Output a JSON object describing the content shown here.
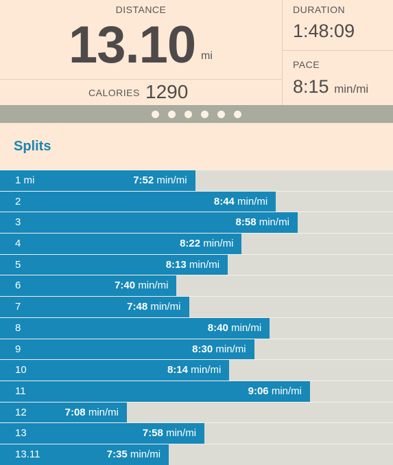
{
  "summary": {
    "distance_label": "DISTANCE",
    "distance_value": "13.10",
    "distance_unit": "mi",
    "calories_label": "CALORIES",
    "calories_value": "1290",
    "duration_label": "DURATION",
    "duration_value": "1:48:09",
    "pace_label": "PACE",
    "pace_value": "8:15",
    "pace_unit": "min/mi"
  },
  "pager": {
    "count": 6,
    "active": 0
  },
  "splits": {
    "title": "Splits",
    "unit": "min/mi",
    "rows": [
      {
        "label": "1 mi",
        "pace": "7:52",
        "seconds": 472
      },
      {
        "label": "2",
        "pace": "8:44",
        "seconds": 524
      },
      {
        "label": "3",
        "pace": "8:58",
        "seconds": 538
      },
      {
        "label": "4",
        "pace": "8:22",
        "seconds": 502
      },
      {
        "label": "5",
        "pace": "8:13",
        "seconds": 493
      },
      {
        "label": "6",
        "pace": "7:40",
        "seconds": 460
      },
      {
        "label": "7",
        "pace": "7:48",
        "seconds": 468
      },
      {
        "label": "8",
        "pace": "8:40",
        "seconds": 520
      },
      {
        "label": "9",
        "pace": "8:30",
        "seconds": 510
      },
      {
        "label": "10",
        "pace": "8:14",
        "seconds": 494
      },
      {
        "label": "11",
        "pace": "9:06",
        "seconds": 546
      },
      {
        "label": "12",
        "pace": "7:08",
        "seconds": 428
      },
      {
        "label": "13",
        "pace": "7:58",
        "seconds": 478
      },
      {
        "label": "13.11",
        "pace": "7:35",
        "seconds": 455
      }
    ]
  },
  "colors": {
    "background": "#fde9d6",
    "accent": "#1788b8",
    "bar_track": "#dcdcd4",
    "pager_bg": "#a8ab9d"
  }
}
